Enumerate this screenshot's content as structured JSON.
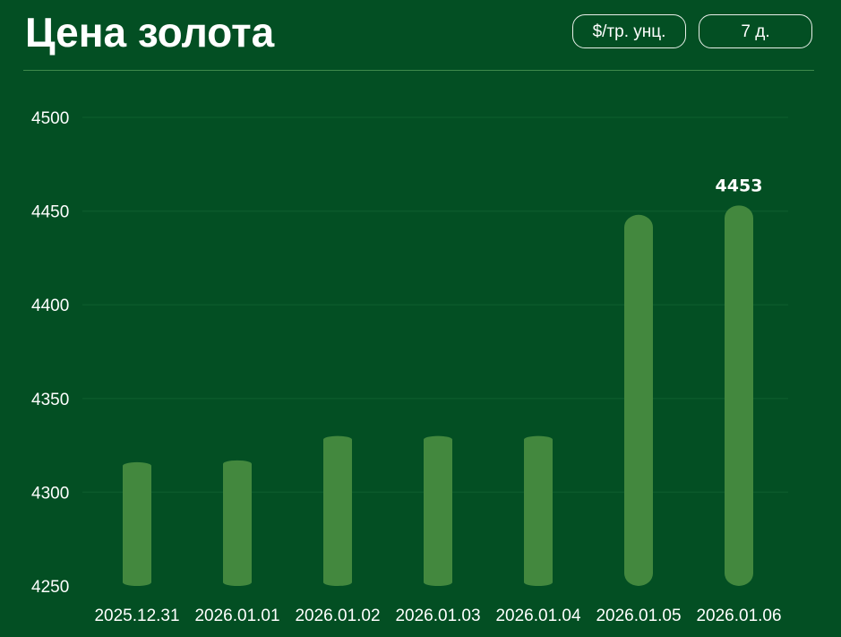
{
  "header": {
    "title": "Цена золота",
    "unit_button": "$/тр. унц.",
    "period_button": "7 д."
  },
  "colors": {
    "background": "#034f23",
    "bar": "#43883e",
    "grid": "#0b5a2b",
    "divider": "#3f8a4c"
  },
  "chart_data": {
    "type": "bar",
    "title": "",
    "xlabel": "",
    "ylabel": "",
    "categories": [
      "2025.12.31",
      "2026.01.01",
      "2026.01.02",
      "2026.01.03",
      "2026.01.04",
      "2026.01.05",
      "2026.01.06"
    ],
    "values": [
      4316,
      4317,
      4330,
      4330,
      4330,
      4448,
      4453
    ],
    "ylim": [
      4250,
      4500
    ],
    "yticks": [
      4250,
      4300,
      4350,
      4400,
      4450,
      4500
    ],
    "labeled_value": "4453",
    "labeled_index": 6,
    "grid": true,
    "legend": "none"
  }
}
